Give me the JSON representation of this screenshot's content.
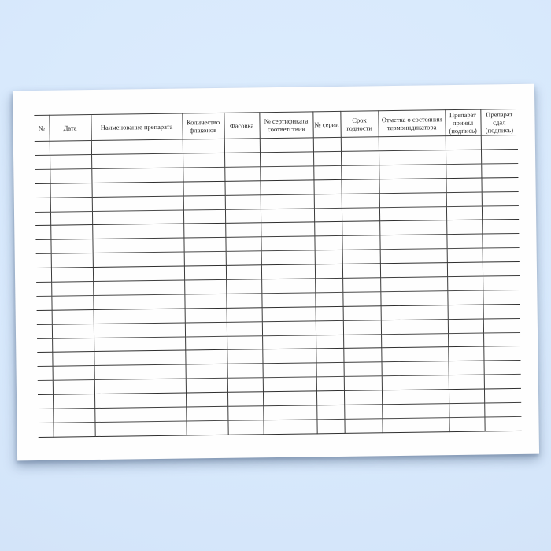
{
  "colors": {
    "background": "#d6e8fb",
    "paper": "#fefefe",
    "table_line": "#3b3b3b",
    "text": "#1b1b1b"
  },
  "paper": {
    "table": {
      "columns": [
        "№",
        "Дата",
        "Наименование препарата",
        "Количество флаконов",
        "Фасовка",
        "№ сертификата соответствия",
        "№ серии",
        "Срок годности",
        "Отметка о состоянии термоиндикатора",
        "Препарат принял (подпись)",
        "Препарат сдал (подпись)"
      ],
      "empty_row_count": 21,
      "rows": []
    }
  }
}
